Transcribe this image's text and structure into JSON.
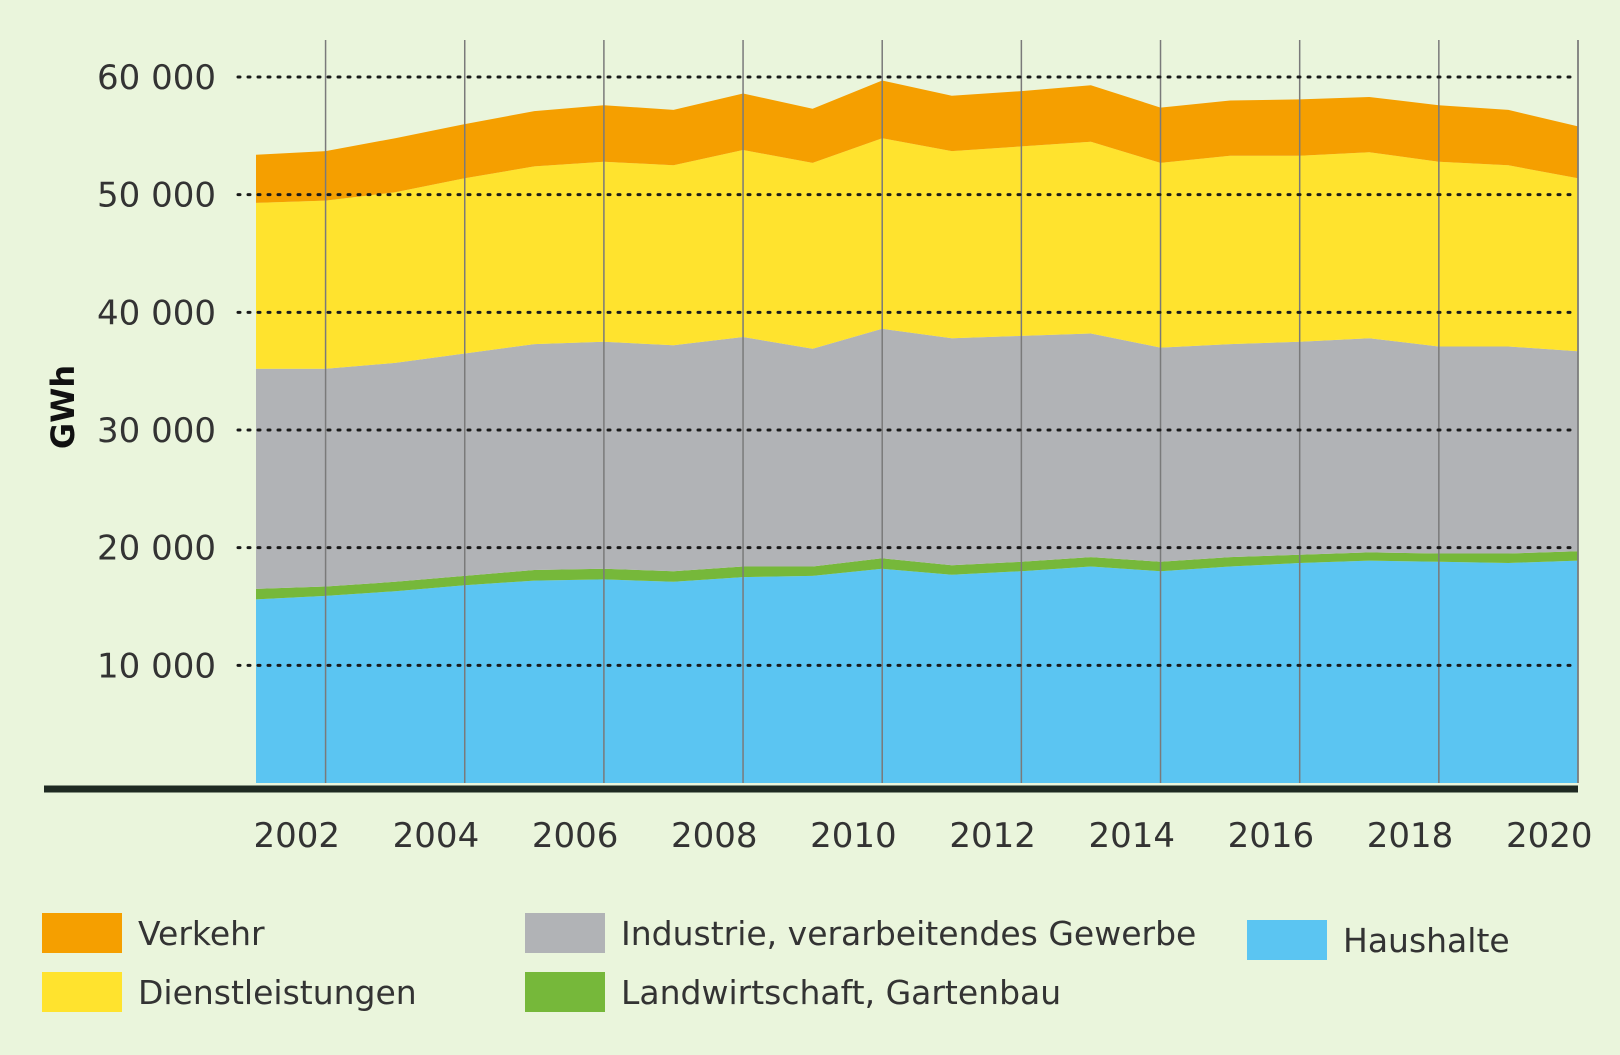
{
  "chart_data": {
    "type": "area",
    "stacked": true,
    "title": "",
    "xlabel": "",
    "ylabel": "GWh",
    "ylim": [
      0,
      60000
    ],
    "yticks": [
      10000,
      20000,
      30000,
      40000,
      50000,
      60000
    ],
    "ytick_labels": [
      "10 000",
      "20 000",
      "30 000",
      "40 000",
      "50 000",
      "60 000"
    ],
    "xticks": [
      2002,
      2004,
      2006,
      2008,
      2010,
      2012,
      2014,
      2016,
      2018,
      2020
    ],
    "xtick_labels": [
      "2002",
      "2004",
      "2006",
      "2008",
      "2010",
      "2012",
      "2014",
      "2016",
      "2018",
      "2020"
    ],
    "grid": {
      "horizontal": "dotted",
      "vertical": "solid"
    },
    "legend_position": "bottom",
    "x": [
      2001,
      2002,
      2003,
      2004,
      2005,
      2006,
      2007,
      2008,
      2009,
      2010,
      2011,
      2012,
      2013,
      2014,
      2015,
      2016,
      2017,
      2018,
      2019,
      2020
    ],
    "series": [
      {
        "name": "Haushalte",
        "color": "#5bc5f2",
        "values": [
          15600,
          15900,
          16300,
          16800,
          17200,
          17300,
          17100,
          17500,
          17600,
          18200,
          17700,
          18000,
          18400,
          18000,
          18400,
          18700,
          18900,
          18800,
          18700,
          18900
        ]
      },
      {
        "name": "Landwirtschaft, Gartenbau",
        "color": "#76b83a",
        "values": [
          900,
          800,
          800,
          800,
          900,
          900,
          900,
          900,
          800,
          900,
          800,
          800,
          800,
          800,
          800,
          700,
          700,
          700,
          800,
          800
        ]
      },
      {
        "name": "Industrie, verarbeitendes Gewerbe",
        "color": "#b1b3b6",
        "values": [
          18700,
          18500,
          18600,
          18900,
          19200,
          19300,
          19200,
          19500,
          18500,
          19500,
          19300,
          19200,
          19000,
          18200,
          18100,
          18100,
          18200,
          17600,
          17600,
          17000
        ]
      },
      {
        "name": "Dienstleistungen",
        "color": "#ffe32e",
        "values": [
          14100,
          14300,
          14500,
          14900,
          15100,
          15300,
          15300,
          15900,
          15800,
          16200,
          15900,
          16100,
          16300,
          15700,
          16000,
          15800,
          15800,
          15700,
          15400,
          14700
        ]
      },
      {
        "name": "Verkehr",
        "color": "#f59f00",
        "values": [
          4100,
          4200,
          4600,
          4600,
          4700,
          4800,
          4700,
          4800,
          4600,
          4900,
          4700,
          4700,
          4800,
          4700,
          4700,
          4800,
          4700,
          4800,
          4700,
          4400
        ]
      }
    ]
  },
  "legend": [
    {
      "label": "Verkehr",
      "color": "#f59f00"
    },
    {
      "label": "Dienstleistungen",
      "color": "#ffe32e"
    },
    {
      "label": "Industrie, verarbeitendes Gewerbe",
      "color": "#b1b3b6"
    },
    {
      "label": "Landwirtschaft, Gartenbau",
      "color": "#76b83a"
    },
    {
      "label": "Haushalte",
      "color": "#5bc5f2"
    }
  ]
}
